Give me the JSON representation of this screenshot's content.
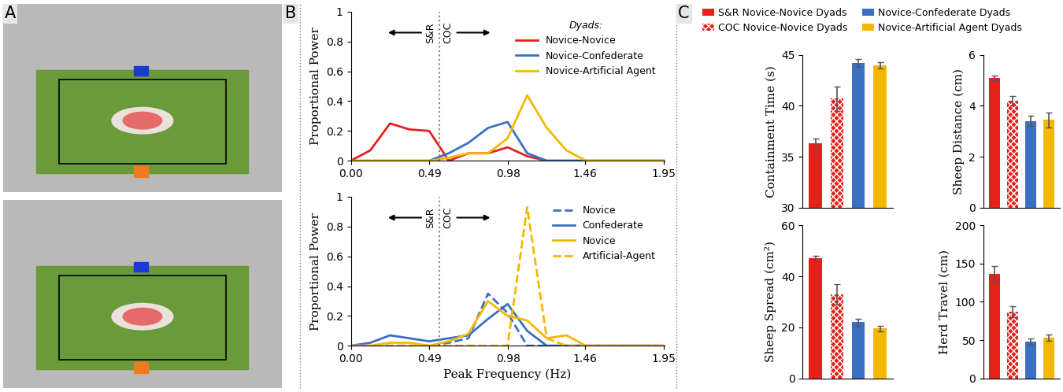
{
  "panel_labels": [
    "A",
    "B",
    "C"
  ],
  "legend_C": [
    {
      "name": "S&R Novice-Novice Dyads",
      "color": "#e8201c"
    },
    {
      "name": "COC Novice-Novice Dyads",
      "color": "#e8201c"
    },
    {
      "name": "Novice-Confederate Dyads",
      "color": "#3a6fc4"
    },
    {
      "name": "Novice-Artificial Agent Dyads",
      "color": "#f5b800"
    }
  ],
  "chart_data": [
    {
      "type": "line",
      "ylabel": "Proportional Power",
      "legend": "upper right",
      "legend_title": "Dyads:",
      "annotations": [
        "S&R",
        "COC"
      ],
      "divider": 0.55,
      "x": [
        0,
        0.122,
        0.244,
        0.366,
        0.488,
        0.61,
        0.732,
        0.854,
        0.976,
        1.098,
        1.22,
        1.342,
        1.464,
        1.586,
        1.708,
        1.83,
        1.952
      ],
      "xlim": [
        0,
        1.952
      ],
      "ylim": [
        0,
        1
      ],
      "xticks": [
        {
          "value": 0,
          "label": "0.00"
        },
        0.49,
        0.98,
        1.46,
        1.95
      ],
      "yticks": [
        0,
        0.2,
        0.4,
        0.6,
        0.8,
        1
      ],
      "series": [
        {
          "name": "Novice-Novice",
          "color": "#e8201c",
          "line_style": "solid",
          "values": [
            0,
            0.07,
            0.25,
            0.21,
            0.2,
            0.0,
            0.05,
            0.05,
            0.09,
            0.03,
            0,
            0,
            0,
            0,
            0,
            0,
            0
          ]
        },
        {
          "name": "Novice-Confederate",
          "color": "#3a6fc4",
          "line_style": "solid",
          "values": [
            0,
            0,
            0,
            0,
            0,
            0.05,
            0.12,
            0.22,
            0.26,
            0.05,
            0,
            0,
            0,
            0,
            0,
            0,
            0
          ]
        },
        {
          "name": "Novice-Artificial Agent",
          "color": "#f5b800",
          "line_style": "solid",
          "values": [
            0,
            0,
            0,
            0,
            0,
            0.02,
            0.05,
            0.05,
            0.15,
            0.44,
            0.22,
            0.07,
            0,
            0,
            0,
            0,
            0
          ]
        }
      ]
    },
    {
      "type": "line",
      "ylabel": "Proportional Power",
      "xlabel": "Peak Frequency (Hz)",
      "legend": "upper right",
      "annotations": [
        "S&R",
        "COC"
      ],
      "divider": 0.55,
      "x": [
        0,
        0.122,
        0.244,
        0.366,
        0.488,
        0.61,
        0.732,
        0.854,
        0.976,
        1.098,
        1.22,
        1.342,
        1.464,
        1.586,
        1.708,
        1.83,
        1.952
      ],
      "xlim": [
        0,
        1.952
      ],
      "ylim": [
        0,
        1
      ],
      "xticks": [
        {
          "value": 0,
          "label": "0.00"
        },
        0.49,
        0.98,
        1.46,
        1.95
      ],
      "yticks": [
        0,
        0.2,
        0.4,
        0.6,
        0.8,
        1
      ],
      "series": [
        {
          "name": "Novice",
          "color": "#3a6fc4",
          "line_style": "dashed",
          "values": [
            0,
            0,
            0,
            0,
            0,
            0.02,
            0.05,
            0.35,
            0.22,
            0.0,
            0,
            0,
            0,
            0,
            0,
            0,
            0
          ]
        },
        {
          "name": "Confederate",
          "color": "#3a6fc4",
          "line_style": "solid",
          "values": [
            0,
            0.02,
            0.07,
            0.05,
            0.03,
            0.05,
            0.07,
            0.18,
            0.28,
            0.1,
            0,
            0,
            0,
            0,
            0,
            0,
            0
          ]
        },
        {
          "name": "Novice",
          "color": "#f5b800",
          "line_style": "solid",
          "values": [
            0,
            0,
            0.02,
            0.02,
            0.0,
            0.03,
            0.08,
            0.3,
            0.2,
            0.17,
            0.05,
            0.07,
            0,
            0,
            0,
            0,
            0
          ]
        },
        {
          "name": "Artificial-Agent",
          "color": "#f5b800",
          "line_style": "dashed",
          "values": [
            0,
            0,
            0,
            0,
            0,
            0,
            0,
            0,
            0.0,
            0.93,
            0.05,
            0,
            0,
            0,
            0,
            0,
            0
          ]
        }
      ]
    },
    {
      "type": "bar",
      "ylabel": "Containment Time (s)",
      "categories": [
        null,
        null,
        null,
        null
      ],
      "values": [
        36.3,
        40.7,
        44.2,
        44.0
      ],
      "errors": [
        0.5,
        1.2,
        0.4,
        0.3
      ],
      "colors": [
        "#e8201c",
        "#e8201c",
        "#3a6fc4",
        "#f5b800"
      ],
      "ylim": [
        30,
        45
      ],
      "yticks": [
        30,
        35,
        40,
        45
      ]
    },
    {
      "type": "bar",
      "ylabel": "Sheep Distance (cm)",
      "categories": [
        null,
        null,
        null,
        null
      ],
      "values": [
        5.1,
        4.2,
        3.4,
        3.45
      ],
      "errors": [
        0.1,
        0.2,
        0.2,
        0.3
      ],
      "colors": [
        "#e8201c",
        "#e8201c",
        "#3a6fc4",
        "#f5b800"
      ],
      "ylim": [
        0,
        6
      ],
      "yticks": [
        0,
        2,
        4,
        6
      ]
    },
    {
      "type": "bar",
      "ylabel": "Sheep Spread (cm²)",
      "categories": [
        null,
        null,
        null,
        null
      ],
      "values": [
        47,
        33,
        22,
        19.5
      ],
      "errors": [
        1,
        4,
        1.5,
        1
      ],
      "colors": [
        "#e8201c",
        "#e8201c",
        "#3a6fc4",
        "#f5b800"
      ],
      "ylim": [
        0,
        60
      ],
      "yticks": [
        0,
        20,
        40,
        60
      ]
    },
    {
      "type": "bar",
      "ylabel": "Herd Travel (cm)",
      "categories": [
        null,
        null,
        null,
        null
      ],
      "values": [
        137,
        87,
        48,
        53
      ],
      "errors": [
        10,
        7,
        4,
        4
      ],
      "colors": [
        "#e8201c",
        "#e8201c",
        "#3a6fc4",
        "#f5b800"
      ],
      "ylim": [
        0,
        200
      ],
      "yticks": [
        0,
        50,
        100,
        150,
        200
      ]
    }
  ]
}
